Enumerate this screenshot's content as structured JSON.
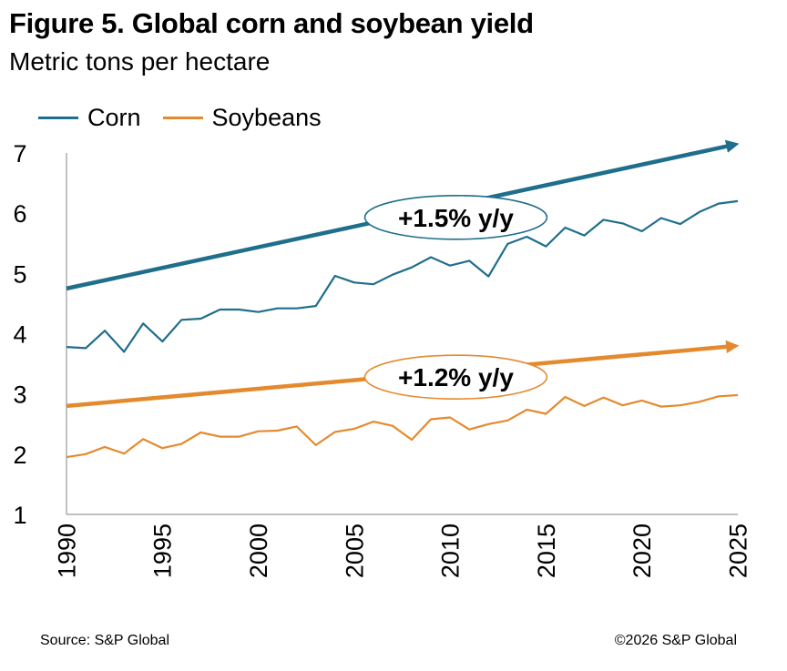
{
  "chart_data": {
    "type": "line",
    "title": "Figure 5. Global corn and soybean yield",
    "subtitle": "Metric tons per hectare",
    "legend": "top-left",
    "xlim": [
      1990,
      2025
    ],
    "ylim": [
      1,
      7
    ],
    "x_ticks": [
      1990,
      1995,
      2000,
      2005,
      2010,
      2015,
      2020,
      2025
    ],
    "y_ticks": [
      1,
      2,
      3,
      4,
      5,
      6,
      7
    ],
    "grid": false,
    "x": [
      1990,
      1991,
      1992,
      1993,
      1994,
      1995,
      1996,
      1997,
      1998,
      1999,
      2000,
      2001,
      2002,
      2003,
      2004,
      2005,
      2006,
      2007,
      2008,
      2009,
      2010,
      2011,
      2012,
      2013,
      2014,
      2015,
      2016,
      2017,
      2018,
      2019,
      2020,
      2021,
      2022,
      2023,
      2024,
      2025
    ],
    "series": [
      {
        "name": "Corn",
        "color": "#1f6e8c",
        "values": [
          3.78,
          3.76,
          4.05,
          3.7,
          4.17,
          3.87,
          4.23,
          4.25,
          4.4,
          4.4,
          4.36,
          4.42,
          4.42,
          4.46,
          4.96,
          4.85,
          4.82,
          4.98,
          5.1,
          5.27,
          5.13,
          5.21,
          4.95,
          5.49,
          5.61,
          5.45,
          5.76,
          5.63,
          5.89,
          5.83,
          5.7,
          5.92,
          5.82,
          6.02,
          6.16,
          6.2
        ]
      },
      {
        "name": "Soybeans",
        "color": "#e48a2e",
        "values": [
          1.95,
          2.0,
          2.12,
          2.01,
          2.25,
          2.1,
          2.17,
          2.36,
          2.29,
          2.29,
          2.38,
          2.39,
          2.46,
          2.15,
          2.37,
          2.42,
          2.54,
          2.47,
          2.24,
          2.58,
          2.61,
          2.41,
          2.5,
          2.56,
          2.74,
          2.67,
          2.95,
          2.8,
          2.94,
          2.81,
          2.89,
          2.79,
          2.81,
          2.87,
          2.96,
          2.98
        ]
      }
    ],
    "trend_lines": [
      {
        "series": "Corn",
        "color": "#1f6e8c",
        "x": [
          1990,
          2025
        ],
        "y": [
          4.75,
          7.15
        ]
      },
      {
        "series": "Soybeans",
        "color": "#e48a2e",
        "x": [
          1990,
          2025
        ],
        "y": [
          2.8,
          3.8
        ]
      }
    ],
    "annotations": [
      {
        "text": "+1.5% y/y",
        "series": "Corn",
        "x": 2010.3,
        "y": 5.93
      },
      {
        "text": "+1.2% y/y",
        "series": "Soybeans",
        "x": 2010.3,
        "y": 3.28
      }
    ]
  },
  "source": "Source: S&P Global",
  "copyright": "©2026 S&P Global"
}
